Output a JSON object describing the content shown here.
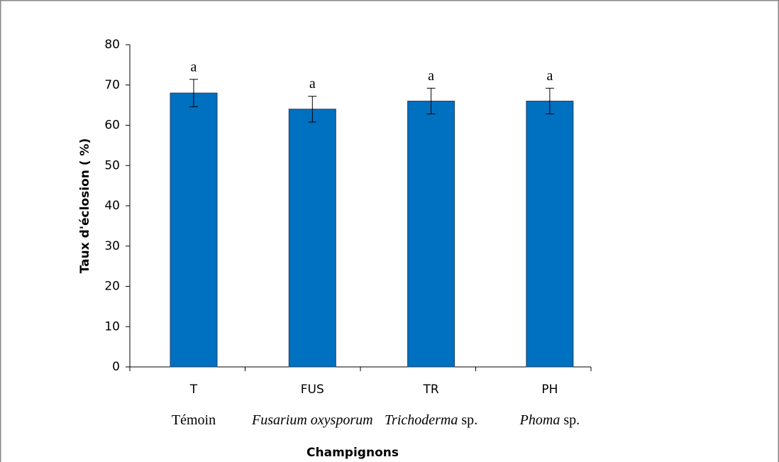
{
  "chart_data": {
    "type": "bar",
    "xlabel": "Champignons",
    "ylabel": "Taux d'éclosion ( %)",
    "categories": [
      "T",
      "FUS",
      "TR",
      "PH"
    ],
    "subcategories": [
      [
        {
          "text": "Témoin",
          "italic": false
        }
      ],
      [
        {
          "text": "Fusarium oxysporum",
          "italic": true
        }
      ],
      [
        {
          "text": "Trichoderma",
          "italic": true
        },
        {
          "text": " sp.",
          "italic": false
        }
      ],
      [
        {
          "text": "Phoma",
          "italic": true
        },
        {
          "text": " sp.",
          "italic": false
        }
      ]
    ],
    "values": [
      68,
      64,
      66,
      66
    ],
    "errors": [
      3.4,
      3.2,
      3.2,
      3.2
    ],
    "annotations": [
      "a",
      "a",
      "a",
      "a"
    ],
    "color": "#0070c0",
    "ylim": [
      0,
      80
    ],
    "yticks": [
      0,
      10,
      20,
      30,
      40,
      50,
      60,
      70,
      80
    ],
    "grid": false
  }
}
